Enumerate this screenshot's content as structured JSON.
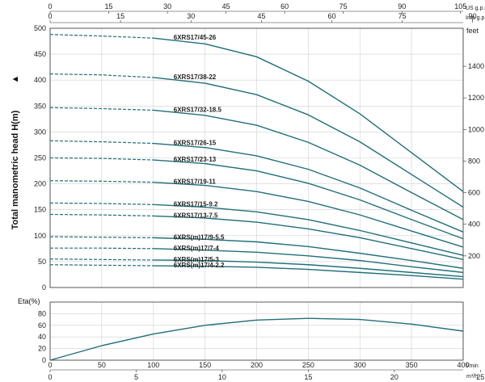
{
  "chart_data": [
    {
      "type": "line",
      "ylabel": "Total manometric head H(m)",
      "ylabel_right": "feet",
      "x_bottom_label": "l/min",
      "x_bottom2_label": "m³/h",
      "x_top_label": "US g.p.m",
      "x_top2_label": "Imp g.p.m",
      "xlim": [
        0,
        400
      ],
      "ylim": [
        0,
        500
      ],
      "x_ticks": [
        0,
        50,
        100,
        150,
        200,
        250,
        300,
        350,
        400
      ],
      "y_ticks": [
        0,
        50,
        100,
        150,
        200,
        250,
        300,
        350,
        400,
        450,
        500
      ],
      "feet_ticks": [
        200,
        400,
        600,
        800,
        1000,
        1200,
        1400
      ],
      "us_gpm_ticks": [
        0,
        15,
        30,
        45,
        60,
        75,
        90,
        105
      ],
      "imp_gpm_ticks": [
        0,
        15,
        30,
        45,
        60,
        75,
        90
      ],
      "m3h_ticks": [
        0,
        5,
        10,
        15,
        20,
        25
      ],
      "grid": true,
      "dashed_region": [
        0,
        100
      ],
      "series": [
        {
          "name": "6XRS17/45-26",
          "values": [
            [
              0,
              488
            ],
            [
              50,
              485
            ],
            [
              100,
              481
            ],
            [
              150,
              470
            ],
            [
              200,
              445
            ],
            [
              250,
              398
            ],
            [
              300,
              335
            ],
            [
              350,
              260
            ],
            [
              400,
              185
            ]
          ]
        },
        {
          "name": "6XRS17/38-22",
          "values": [
            [
              0,
              412
            ],
            [
              50,
              410
            ],
            [
              100,
              405
            ],
            [
              150,
              394
            ],
            [
              200,
              372
            ],
            [
              250,
              333
            ],
            [
              300,
              281
            ],
            [
              350,
              218
            ],
            [
              400,
              155
            ]
          ]
        },
        {
          "name": "6XRS17/32-18.5",
          "values": [
            [
              0,
              347
            ],
            [
              50,
              345
            ],
            [
              100,
              342
            ],
            [
              150,
              332
            ],
            [
              200,
              313
            ],
            [
              250,
              280
            ],
            [
              300,
              236
            ],
            [
              350,
              183
            ],
            [
              400,
              131
            ]
          ]
        },
        {
          "name": "6XRS17/26-15",
          "values": [
            [
              0,
              283
            ],
            [
              50,
              281
            ],
            [
              100,
              278
            ],
            [
              150,
              270
            ],
            [
              200,
              254
            ],
            [
              250,
              228
            ],
            [
              300,
              192
            ],
            [
              350,
              149
            ],
            [
              400,
              107
            ]
          ]
        },
        {
          "name": "6XRS17/23-13",
          "values": [
            [
              0,
              250
            ],
            [
              50,
              249
            ],
            [
              100,
              246
            ],
            [
              150,
              239
            ],
            [
              200,
              225
            ],
            [
              250,
              201
            ],
            [
              300,
              169
            ],
            [
              350,
              131
            ],
            [
              400,
              94
            ]
          ]
        },
        {
          "name": "6XRS17/19-11",
          "values": [
            [
              0,
              206
            ],
            [
              50,
              205
            ],
            [
              100,
              203
            ],
            [
              150,
              197
            ],
            [
              200,
              185
            ],
            [
              250,
              166
            ],
            [
              300,
              140
            ],
            [
              350,
              109
            ],
            [
              400,
              78
            ]
          ]
        },
        {
          "name": "6XRS17/15-9.2",
          "values": [
            [
              0,
              163
            ],
            [
              50,
              162
            ],
            [
              100,
              160
            ],
            [
              150,
              155
            ],
            [
              200,
              146
            ],
            [
              250,
              131
            ],
            [
              300,
              110
            ],
            [
              350,
              86
            ],
            [
              400,
              62
            ]
          ]
        },
        {
          "name": "6XRS17/13-7.5",
          "values": [
            [
              0,
              141
            ],
            [
              50,
              140
            ],
            [
              100,
              138
            ],
            [
              150,
              134
            ],
            [
              200,
              126
            ],
            [
              250,
              113
            ],
            [
              300,
              96
            ],
            [
              350,
              75
            ],
            [
              400,
              54
            ]
          ]
        },
        {
          "name": "6XRS(m)17/9-5.5",
          "values": [
            [
              0,
              98
            ],
            [
              50,
              97
            ],
            [
              100,
              96
            ],
            [
              150,
              93
            ],
            [
              200,
              88
            ],
            [
              250,
              79
            ],
            [
              300,
              66
            ],
            [
              350,
              52
            ],
            [
              400,
              37
            ]
          ]
        },
        {
          "name": "6XRS(m)17/7-4",
          "values": [
            [
              0,
              76
            ],
            [
              50,
              76
            ],
            [
              100,
              75
            ],
            [
              150,
              72
            ],
            [
              200,
              68
            ],
            [
              250,
              61
            ],
            [
              300,
              52
            ],
            [
              350,
              40
            ],
            [
              400,
              29
            ]
          ]
        },
        {
          "name": "6XRS(m)17/5-3",
          "values": [
            [
              0,
              55
            ],
            [
              50,
              54
            ],
            [
              100,
              53
            ],
            [
              150,
              52
            ],
            [
              200,
              49
            ],
            [
              250,
              44
            ],
            [
              300,
              37
            ],
            [
              350,
              29
            ],
            [
              400,
              21
            ]
          ]
        },
        {
          "name": "6XRS(m)17/4-2.2",
          "values": [
            [
              0,
              44
            ],
            [
              50,
              43
            ],
            [
              100,
              42
            ],
            [
              150,
              41
            ],
            [
              200,
              39
            ],
            [
              250,
              35
            ],
            [
              300,
              29
            ],
            [
              350,
              23
            ],
            [
              400,
              16
            ]
          ]
        }
      ]
    },
    {
      "type": "line",
      "ylabel": "Eta(%)",
      "xlim": [
        0,
        400
      ],
      "ylim": [
        0,
        100
      ],
      "y_ticks": [
        0,
        20,
        40,
        60,
        80
      ],
      "grid": true,
      "series": [
        {
          "values": [
            [
              0,
              0
            ],
            [
              50,
              25
            ],
            [
              100,
              45
            ],
            [
              150,
              60
            ],
            [
              200,
              69
            ],
            [
              250,
              72
            ],
            [
              300,
              70
            ],
            [
              350,
              62
            ],
            [
              400,
              50
            ]
          ]
        }
      ]
    }
  ],
  "colors": {
    "curve": "#1f6f7a",
    "grid": "#d0d0d0",
    "frame": "#333333",
    "text": "#222222"
  }
}
